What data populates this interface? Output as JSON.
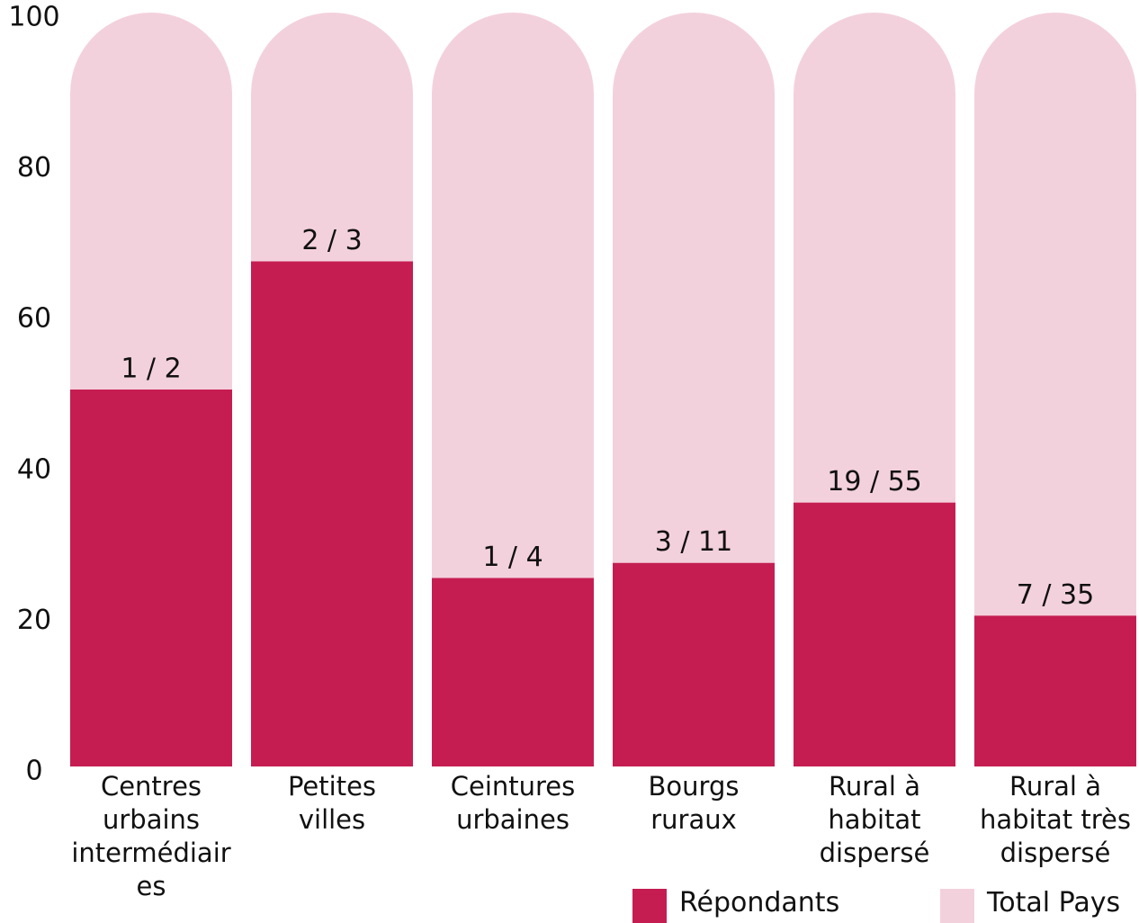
{
  "chart_data": {
    "type": "bar",
    "categories": [
      "Centres urbains intermédiaires",
      "Petites villes",
      "Ceintures urbaines",
      "Bourgs ruraux",
      "Rural à habitat dispersé",
      "Rural à habitat très dispersé"
    ],
    "series": [
      {
        "name": "Répondants",
        "color": "#c51d52",
        "values": [
          50,
          67,
          25,
          27,
          35,
          20
        ],
        "value_labels": [
          "1 / 2",
          "2 / 3",
          "1 / 4",
          "3 / 11",
          "19 / 55",
          "7 / 35"
        ]
      },
      {
        "name": "Total Pays",
        "color": "#f3d1dc",
        "values": [
          100,
          100,
          100,
          100,
          100,
          100
        ]
      }
    ],
    "ylim": [
      0,
      100
    ],
    "yticks": [
      0,
      20,
      40,
      60,
      80,
      100
    ],
    "grid": false,
    "legend": "lower right"
  }
}
